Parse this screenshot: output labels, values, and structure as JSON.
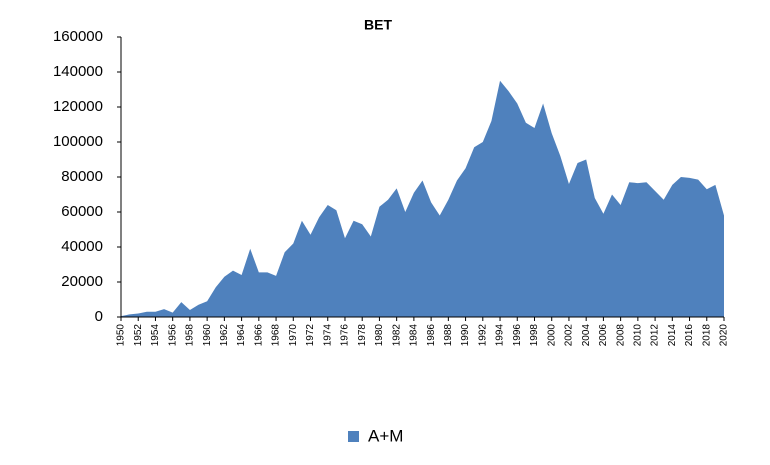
{
  "chart_data": {
    "type": "area",
    "title": "BET",
    "x": [
      1950,
      1951,
      1952,
      1953,
      1954,
      1955,
      1956,
      1957,
      1958,
      1959,
      1960,
      1961,
      1962,
      1963,
      1964,
      1965,
      1966,
      1967,
      1968,
      1969,
      1970,
      1971,
      1972,
      1973,
      1974,
      1975,
      1976,
      1977,
      1978,
      1979,
      1980,
      1981,
      1982,
      1983,
      1984,
      1985,
      1986,
      1987,
      1988,
      1989,
      1990,
      1991,
      1992,
      1993,
      1994,
      1995,
      1996,
      1997,
      1998,
      1999,
      2000,
      2001,
      2002,
      2003,
      2004,
      2005,
      2006,
      2007,
      2008,
      2009,
      2010,
      2011,
      2012,
      2013,
      2014,
      2015,
      2016,
      2017,
      2018,
      2019,
      2020
    ],
    "series": [
      {
        "name": "A+M",
        "color": "#4f81bd",
        "values": [
          500,
          1500,
          2000,
          3000,
          3000,
          4500,
          2500,
          8500,
          4000,
          7000,
          9000,
          17000,
          23000,
          26500,
          24000,
          39000,
          25500,
          25500,
          23500,
          37000,
          42000,
          55000,
          47000,
          57000,
          64000,
          61000,
          45000,
          55000,
          53000,
          46000,
          63000,
          67000,
          73500,
          60000,
          71000,
          78000,
          65500,
          58000,
          67000,
          78000,
          85000,
          97000,
          100000,
          112000,
          135000,
          129000,
          122000,
          111000,
          108000,
          122000,
          105000,
          92000,
          76000,
          88000,
          90000,
          68000,
          59000,
          70000,
          64000,
          77000,
          76500,
          77000,
          72000,
          67000,
          75500,
          80000,
          79500,
          78500,
          73000,
          75500,
          58000
        ]
      }
    ],
    "xlim": [
      1950,
      2020
    ],
    "xticks": [
      1950,
      1952,
      1954,
      1956,
      1958,
      1960,
      1962,
      1964,
      1966,
      1968,
      1970,
      1972,
      1974,
      1976,
      1978,
      1980,
      1982,
      1984,
      1986,
      1988,
      1990,
      1992,
      1994,
      1996,
      1998,
      2000,
      2002,
      2004,
      2006,
      2008,
      2010,
      2012,
      2014,
      2016,
      2018,
      2020
    ],
    "ylim": [
      0,
      160000
    ],
    "yticks": [
      0,
      20000,
      40000,
      60000,
      80000,
      100000,
      120000,
      140000,
      160000
    ],
    "grid": false,
    "legend": "bottom"
  }
}
